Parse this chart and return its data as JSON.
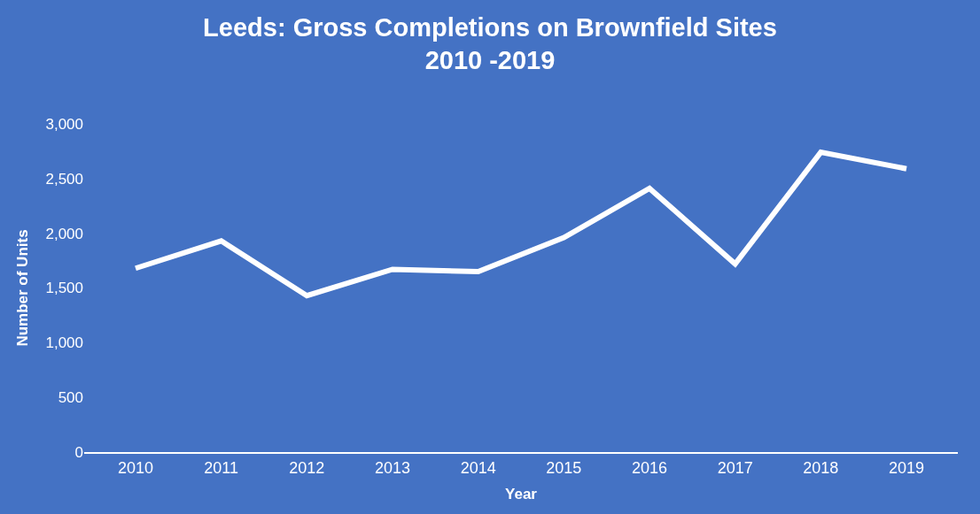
{
  "chart_data": {
    "type": "line",
    "title": "Leeds: Gross Completions on Brownfield Sites\n2010 -2019",
    "xlabel": "Year",
    "ylabel": "Number of Units",
    "categories": [
      "2010",
      "2011",
      "2012",
      "2013",
      "2014",
      "2015",
      "2016",
      "2017",
      "2018",
      "2019"
    ],
    "series": [
      {
        "color": "#ffffff",
        "values": [
          1680,
          1930,
          1430,
          1670,
          1650,
          1960,
          2410,
          1720,
          2740,
          2590
        ]
      }
    ],
    "ylim": [
      0,
      3000
    ],
    "yticks": [
      0,
      {
        "value": 500,
        "label": "500"
      },
      {
        "value": 1000,
        "label": "1,000"
      },
      {
        "value": 1500,
        "label": "1,500"
      },
      {
        "value": 2000,
        "label": "2,000"
      },
      {
        "value": 2500,
        "label": "2,500"
      },
      {
        "value": 3000,
        "label": "3,000"
      }
    ],
    "grid": false,
    "marker": "none",
    "line_style": "solid"
  }
}
